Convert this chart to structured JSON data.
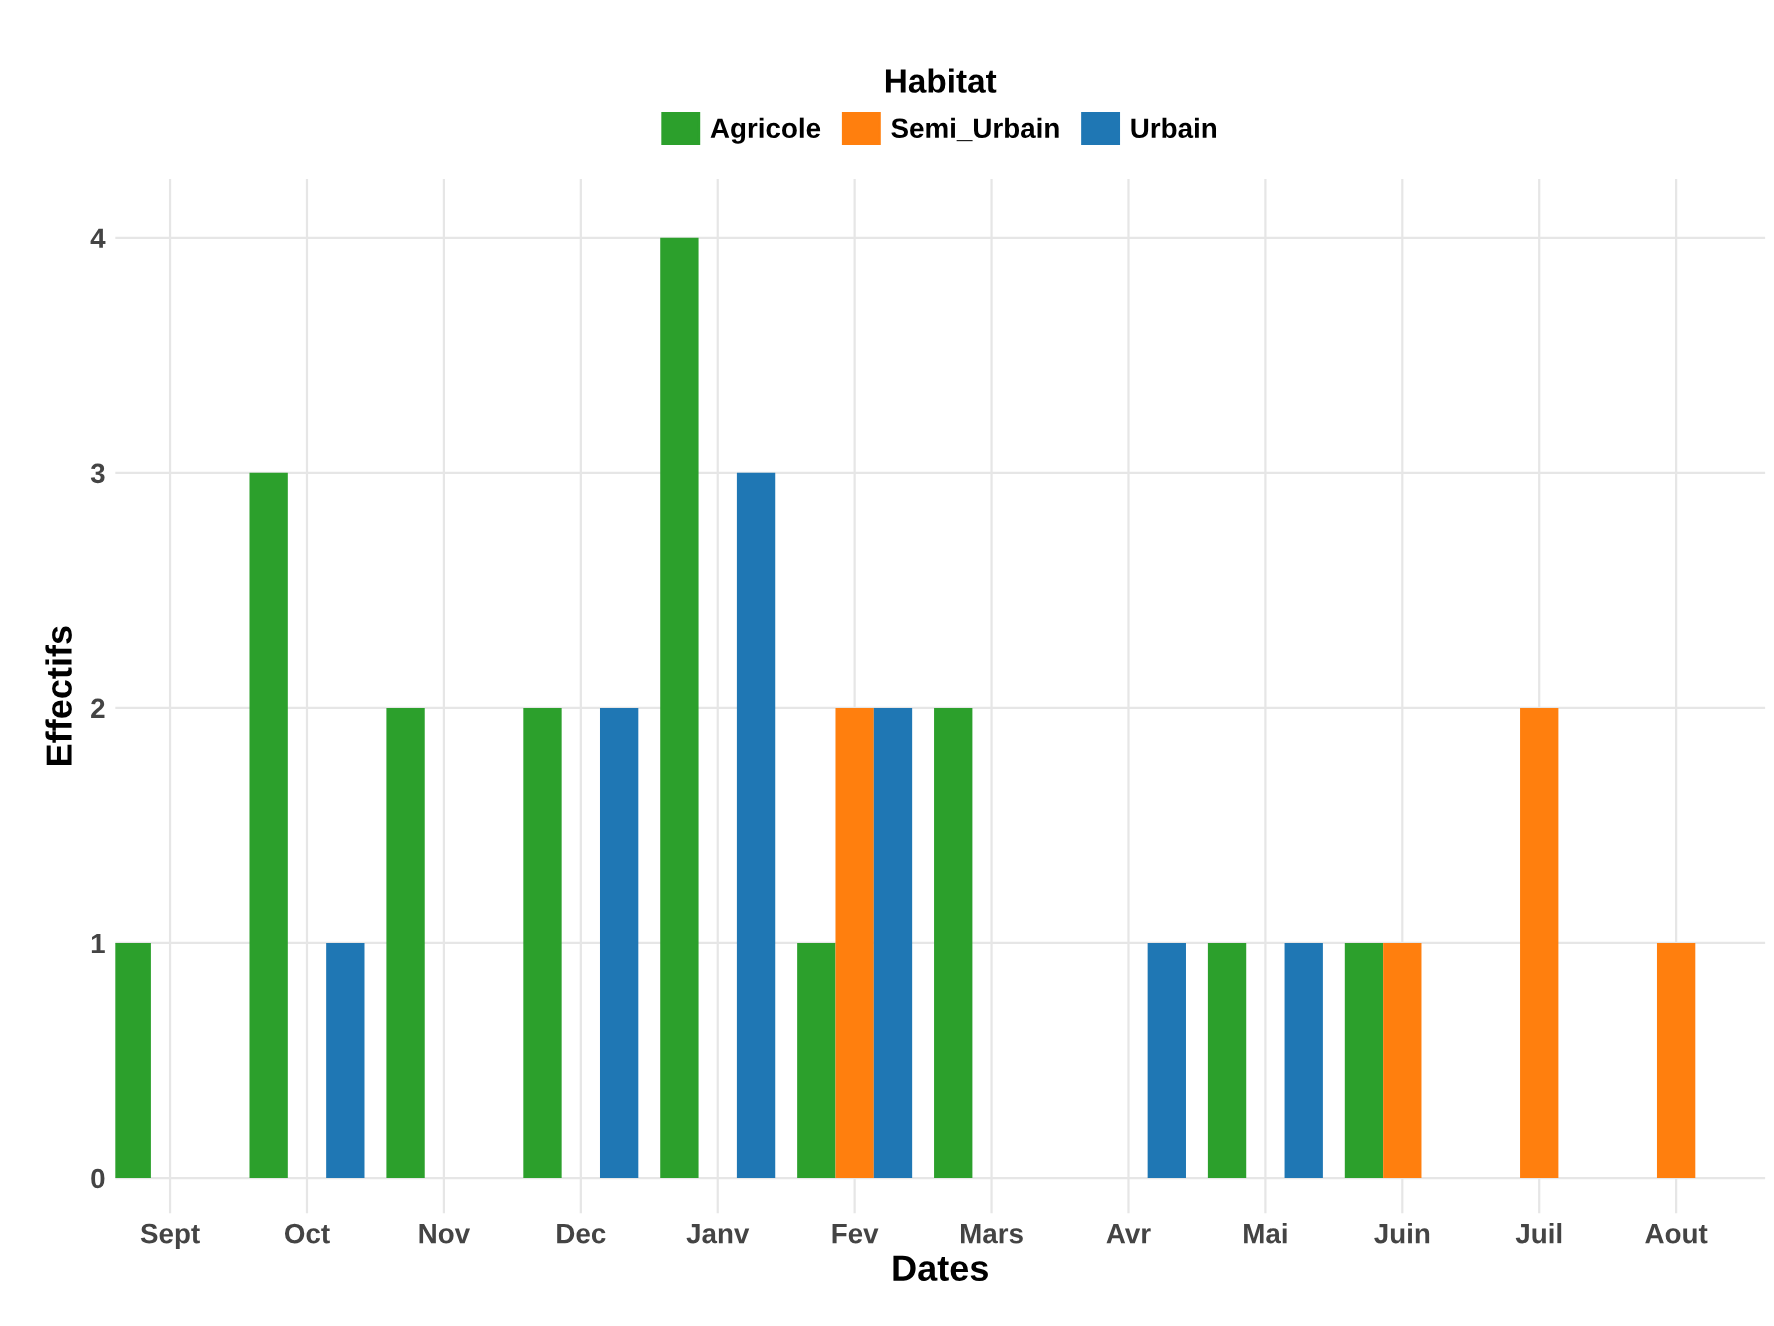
{
  "chart_data": {
    "type": "bar",
    "xlabel": "Dates",
    "ylabel": "Effectifs",
    "legend_title": "Habitat",
    "legend": "top",
    "grid": true,
    "categories": [
      "Sept",
      "Oct",
      "Nov",
      "Dec",
      "Janv",
      "Fev",
      "Mars",
      "Avr",
      "Mai",
      "Juin",
      "Juil",
      "Aout"
    ],
    "ylim": [
      -0.15,
      4.25
    ],
    "yticks": [
      0,
      1,
      2,
      3,
      4
    ],
    "series": [
      {
        "name": "Agricole",
        "color": "#2ca02c",
        "values": [
          1,
          3,
          2,
          2,
          4,
          1,
          2,
          null,
          1,
          1,
          null,
          null
        ]
      },
      {
        "name": "Semi_Urbain",
        "color": "#ff7f0e",
        "values": [
          null,
          null,
          null,
          null,
          null,
          2,
          null,
          null,
          null,
          1,
          2,
          1
        ]
      },
      {
        "name": "Urbain",
        "color": "#1f77b4",
        "values": [
          null,
          1,
          null,
          2,
          3,
          2,
          null,
          1,
          1,
          null,
          null,
          null
        ]
      }
    ]
  }
}
